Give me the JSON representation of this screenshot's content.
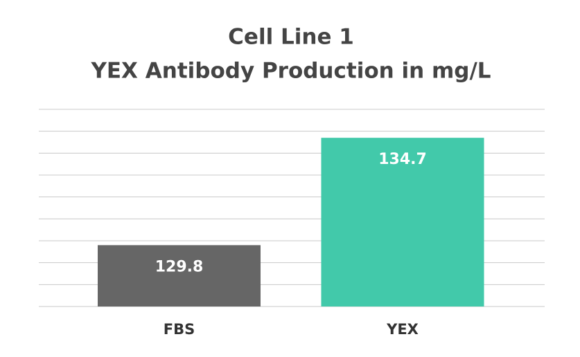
{
  "chart_data": {
    "type": "bar",
    "title": [
      "Cell Line 1",
      "YEX Antibody Production in mg/L"
    ],
    "categories": [
      "FBS",
      "YEX"
    ],
    "values": [
      129.8,
      134.7
    ],
    "colors": [
      "#666666",
      "#42c9aa"
    ],
    "ylim": [
      127,
      136
    ],
    "yticks": [
      127,
      128,
      129,
      130,
      131,
      132,
      133,
      134,
      135,
      136
    ],
    "grid": true
  }
}
